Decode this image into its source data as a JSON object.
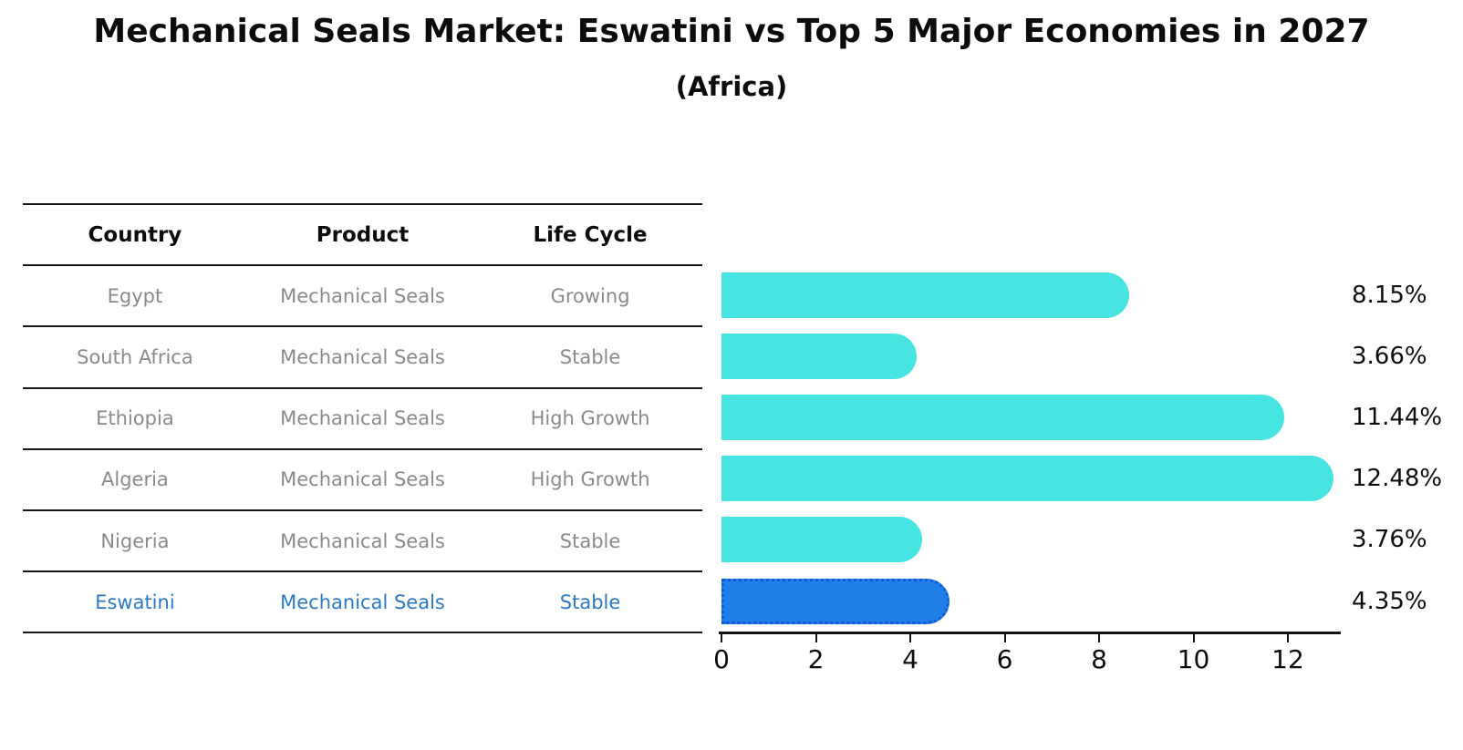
{
  "title": "Mechanical Seals Market: Eswatini vs Top 5 Major Economies in 2027",
  "subtitle": "(Africa)",
  "table": {
    "headers": [
      "Country",
      "Product",
      "Life Cycle"
    ],
    "rows": [
      {
        "country": "Egypt",
        "product": "Mechanical Seals",
        "life_cycle": "Growing",
        "highlight": false
      },
      {
        "country": "South Africa",
        "product": "Mechanical Seals",
        "life_cycle": "Stable",
        "highlight": false
      },
      {
        "country": "Ethiopia",
        "product": "Mechanical Seals",
        "life_cycle": "High Growth",
        "highlight": false
      },
      {
        "country": "Algeria",
        "product": "Mechanical Seals",
        "life_cycle": "High Growth",
        "highlight": false
      },
      {
        "country": "Nigeria",
        "product": "Mechanical Seals",
        "life_cycle": "Stable",
        "highlight": false
      },
      {
        "country": "Eswatini",
        "product": "Mechanical Seals",
        "life_cycle": "Stable",
        "highlight": true
      }
    ]
  },
  "chart_data": {
    "type": "bar",
    "orientation": "horizontal",
    "title": "Mechanical Seals Market: Eswatini vs Top 5 Major Economies in 2027",
    "subtitle": "(Africa)",
    "categories": [
      "Egypt",
      "South Africa",
      "Ethiopia",
      "Algeria",
      "Nigeria",
      "Eswatini"
    ],
    "values": [
      8.15,
      3.66,
      11.44,
      12.48,
      3.76,
      4.35
    ],
    "value_labels": [
      "8.15%",
      "3.66%",
      "11.44%",
      "12.48%",
      "3.76%",
      "4.35%"
    ],
    "xticks": [
      0,
      2,
      4,
      6,
      8,
      10,
      12
    ],
    "xlim": [
      0,
      13.1
    ],
    "grid": false,
    "legend": "none",
    "highlight_index": 5,
    "colors": {
      "bar": "#47e5e1",
      "highlight_bar": "#1f7ee8",
      "highlight_border": "#1059d6",
      "highlight_text": "#2a79c6",
      "row_text": "#8a8a8a",
      "axis": "#141414"
    }
  }
}
